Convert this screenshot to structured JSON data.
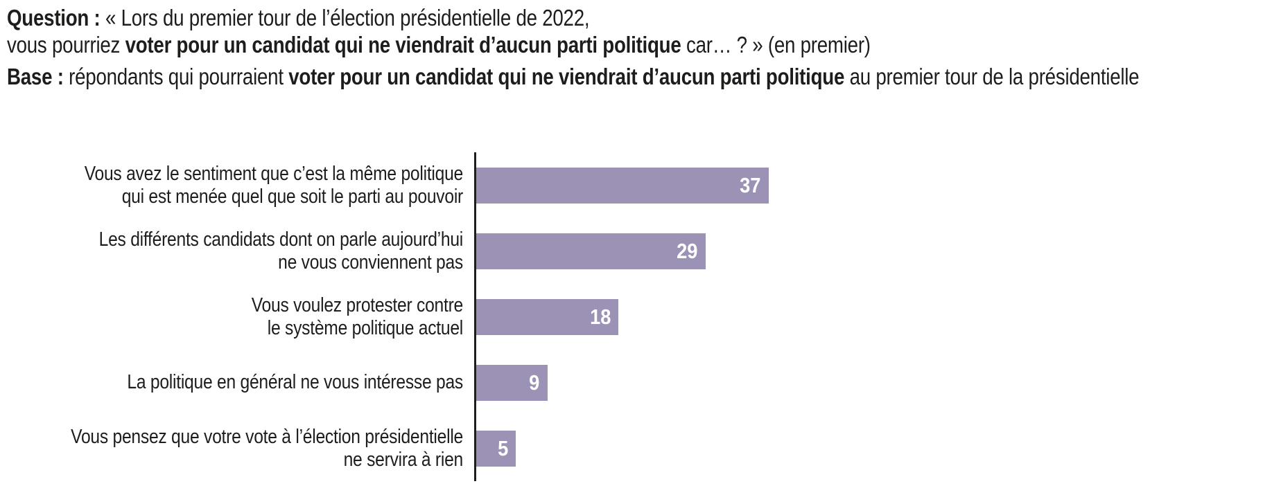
{
  "question": {
    "label": "Question :",
    "intro": " « Lors du premier tour de l’élection présidentielle de 2022,",
    "line2_start": "vous pourriez ",
    "line2_bold": "voter pour un candidat qui ne viendrait d’aucun parti politique",
    "line2_end": " car… ? » (en premier)"
  },
  "base": {
    "label": "Base :",
    "start": " répondants qui pourraient ",
    "bold": "voter pour un candidat qui ne viendrait d’aucun parti politique",
    "end": " au premier tour de la présidentielle"
  },
  "chart_data": {
    "type": "bar",
    "orientation": "horizontal",
    "title": "",
    "xlabel": "",
    "ylabel": "",
    "categories": [
      "Vous avez le sentiment que c’est la même politique qui est menée quel que soit le parti au pouvoir",
      "Les différents candidats dont on parle aujourd’hui ne vous conviennent pas",
      "Vous voulez protester contre le système politique actuel",
      "La politique en général ne vous intéresse pas",
      "Vous pensez que votre vote à l’élection présidentielle ne servira à rien"
    ],
    "category_lines": [
      [
        "Vous avez le sentiment que c’est la même politique",
        "qui est menée quel que soit le parti au pouvoir"
      ],
      [
        "Les différents candidats dont on parle aujourd’hui",
        "ne vous conviennent pas"
      ],
      [
        "Vous voulez protester contre",
        "le système politique actuel"
      ],
      [
        "La politique en général ne vous intéresse pas"
      ],
      [
        "Vous pensez que votre vote à l’élection présidentielle",
        "ne servira à rien"
      ]
    ],
    "values": [
      37,
      29,
      18,
      9,
      5
    ],
    "xlim": [
      0,
      40
    ],
    "grid": false,
    "legend": false,
    "value_labels_position": "inside-end",
    "bar_color": "#9b92b6",
    "value_label_color": "#ffffff",
    "axis_color": "#1d1d1b",
    "text_color": "#1d1d1b"
  }
}
